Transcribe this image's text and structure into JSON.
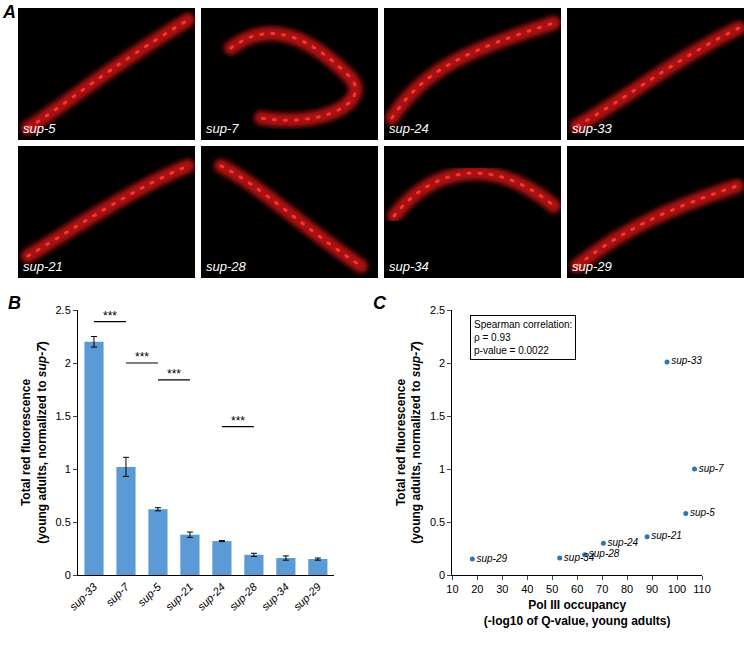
{
  "image_panel": {
    "panel": "A",
    "tiles": [
      "sup-5",
      "sup-7",
      "sup-24",
      "sup-33",
      "sup-21",
      "sup-28",
      "sup-34",
      "sup-29"
    ]
  },
  "chart_data": [
    {
      "panel": "B",
      "type": "bar",
      "categories": [
        "sup-33",
        "sup-7",
        "sup-5",
        "sup-21",
        "sup-24",
        "sup-28",
        "sup-34",
        "sup-29"
      ],
      "values": [
        2.2,
        1.02,
        0.62,
        0.38,
        0.32,
        0.19,
        0.16,
        0.15
      ],
      "errors": [
        0.05,
        0.09,
        0.015,
        0.025,
        0.005,
        0.015,
        0.02,
        0.01
      ],
      "color": "#5b9bd5",
      "y_label": [
        "Total red fluorescence",
        "(young adults, normalized to sup-7)"
      ],
      "ylim": [
        0,
        2.5
      ],
      "yticks": [
        0,
        0.5,
        1,
        1.5,
        2,
        2.5
      ],
      "grid": false,
      "significance": [
        {
          "from": "sup-33",
          "to": "sup-7",
          "y": 2.39,
          "text": "***"
        },
        {
          "from": "sup-7",
          "to": "sup-5",
          "y": 2.0,
          "text": "***"
        },
        {
          "from": "sup-5",
          "to": "sup-21",
          "y": 1.84,
          "text": "***"
        },
        {
          "from": "sup-24",
          "to": "sup-28",
          "y": 1.4,
          "text": "***"
        }
      ]
    },
    {
      "panel": "C",
      "type": "scatter",
      "x": [
        96,
        107,
        103.5,
        88,
        70.5,
        63,
        53,
        18
      ],
      "values": [
        2.01,
        1.0,
        0.58,
        0.36,
        0.3,
        0.19,
        0.16,
        0.15
      ],
      "point_labels": [
        "sup-33",
        "sup-7",
        "sup-5",
        "sup-21",
        "sup-24",
        "sup-28",
        "sup-34",
        "sup-29"
      ],
      "color": "#2e75b6",
      "marker": "circle",
      "x_label": [
        "Pol III occupancy",
        "(-log10 of Q-value, young adults)"
      ],
      "y_label": [
        "Total red fluorescence",
        "(young adults, normalized to sup-7)"
      ],
      "xlim": [
        10,
        110
      ],
      "xticks": [
        10,
        20,
        30,
        40,
        50,
        60,
        70,
        80,
        90,
        100,
        110
      ],
      "ylim": [
        0,
        2.5
      ],
      "yticks": [
        0,
        0.5,
        1,
        1.5,
        2,
        2.5
      ],
      "grid": false,
      "box_text": [
        "Spearman correlation:",
        "ρ = 0.93",
        "p-value = 0.0022"
      ]
    }
  ]
}
